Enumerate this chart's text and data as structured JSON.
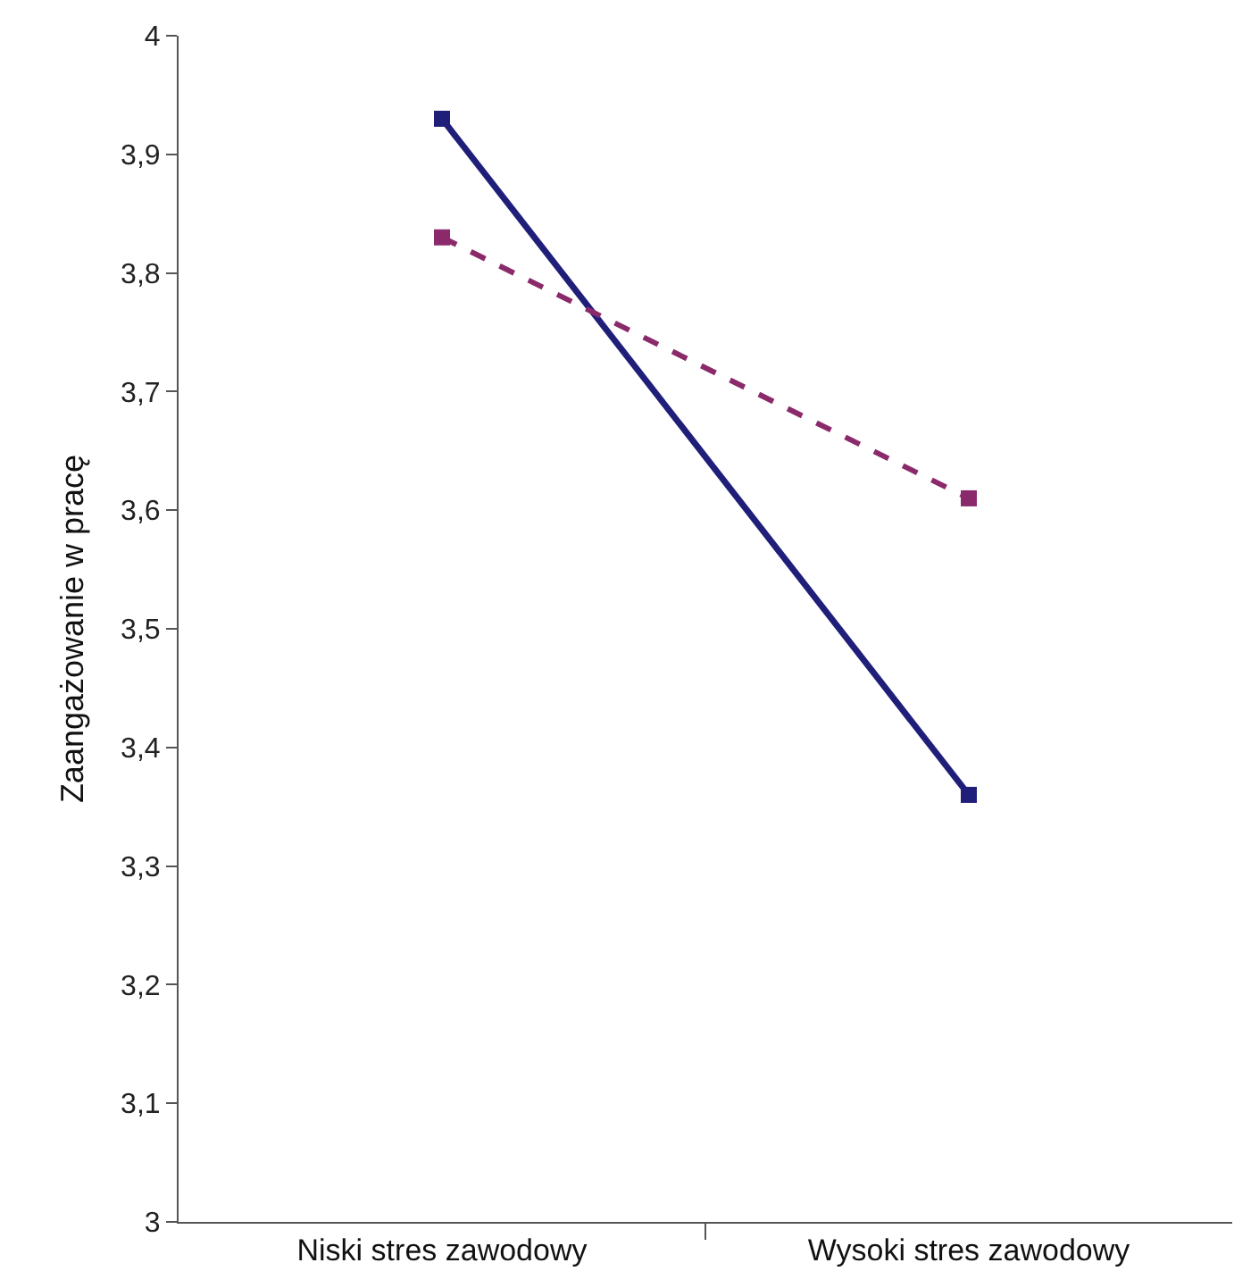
{
  "chart_data": {
    "type": "line",
    "ylabel": "Zaangażowanie w pracę",
    "categories": [
      "Niski stres zawodowy",
      "Wysoki stres zawodowy"
    ],
    "series": [
      {
        "color": "#1f1f7a",
        "values": [
          3.93,
          3.36
        ],
        "line_style": "solid",
        "marker": "square"
      },
      {
        "color": "#8b2a6b",
        "values": [
          3.83,
          3.61
        ],
        "line_style": "dashed",
        "marker": "square"
      }
    ],
    "ylim": [
      3,
      4
    ],
    "yticks": [
      3,
      {
        "value": 3.1,
        "label": "3,1"
      },
      {
        "value": 3.2,
        "label": "3,2"
      },
      {
        "value": 3.3,
        "label": "3,3"
      },
      {
        "value": 3.4,
        "label": "3,4"
      },
      {
        "value": 3.5,
        "label": "3,5"
      },
      {
        "value": 3.6,
        "label": "3,6"
      },
      {
        "value": 3.7,
        "label": "3,7"
      },
      {
        "value": 3.8,
        "label": "3,8"
      },
      {
        "value": 3.9,
        "label": "3,9"
      },
      4
    ]
  }
}
